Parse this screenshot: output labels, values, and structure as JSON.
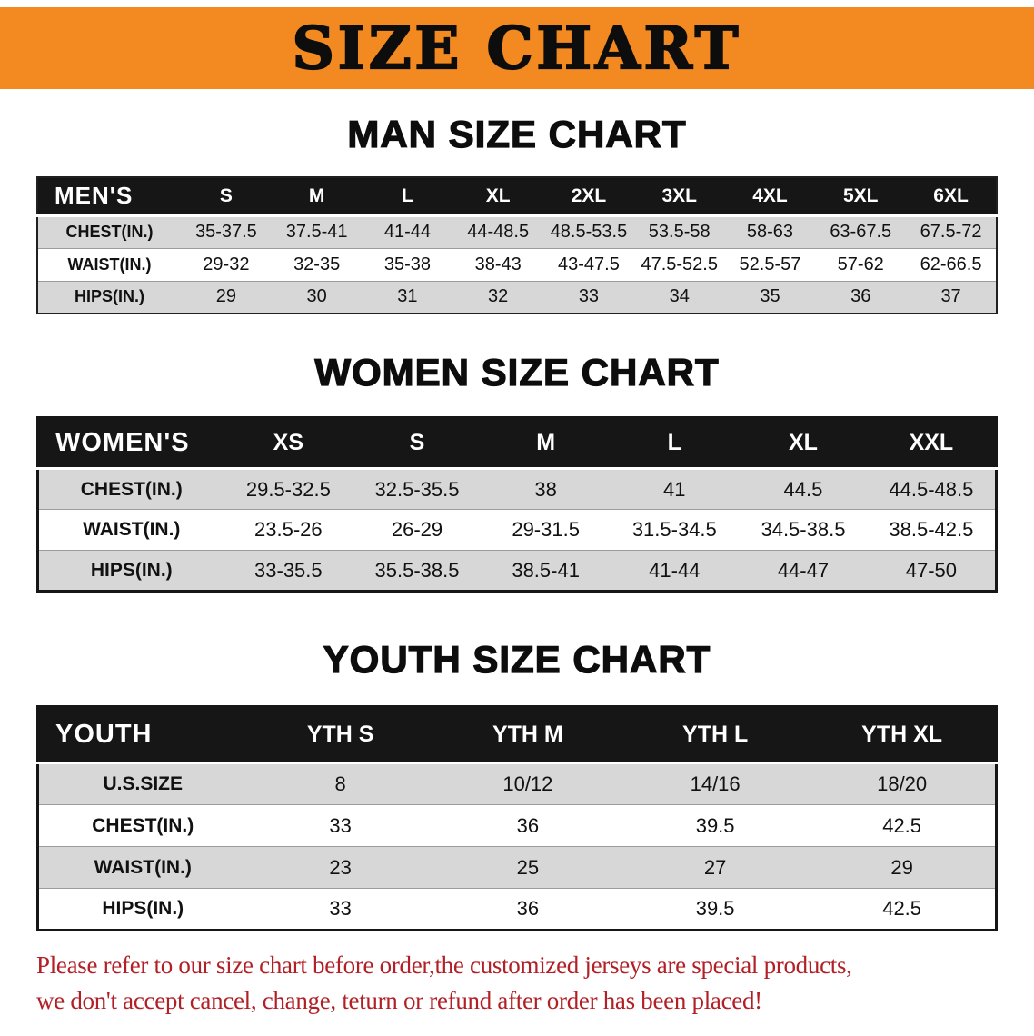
{
  "colors": {
    "banner_bg": "#F28A21",
    "table_header_bg": "#161616",
    "row_alt_bg": "#D7D7D7",
    "disclaimer_text": "#B12026"
  },
  "banner": {
    "title": "SIZE CHART"
  },
  "men": {
    "heading": "MAN SIZE CHART",
    "header": [
      "MEN'S",
      "S",
      "M",
      "L",
      "XL",
      "2XL",
      "3XL",
      "4XL",
      "5XL",
      "6XL"
    ],
    "rows": [
      {
        "label": "CHEST(IN.)",
        "values": [
          "35-37.5",
          "37.5-41",
          "41-44",
          "44-48.5",
          "48.5-53.5",
          "53.5-58",
          "58-63",
          "63-67.5",
          "67.5-72"
        ]
      },
      {
        "label": "WAIST(IN.)",
        "values": [
          "29-32",
          "32-35",
          "35-38",
          "38-43",
          "43-47.5",
          "47.5-52.5",
          "52.5-57",
          "57-62",
          "62-66.5"
        ]
      },
      {
        "label": "HIPS(IN.)",
        "values": [
          "29",
          "30",
          "31",
          "32",
          "33",
          "34",
          "35",
          "36",
          "37"
        ]
      }
    ]
  },
  "women": {
    "heading": "WOMEN SIZE CHART",
    "header": [
      "WOMEN'S",
      "XS",
      "S",
      "M",
      "L",
      "XL",
      "XXL"
    ],
    "rows": [
      {
        "label": "CHEST(IN.)",
        "values": [
          "29.5-32.5",
          "32.5-35.5",
          "38",
          "41",
          "44.5",
          "44.5-48.5"
        ]
      },
      {
        "label": "WAIST(IN.)",
        "values": [
          "23.5-26",
          "26-29",
          "29-31.5",
          "31.5-34.5",
          "34.5-38.5",
          "38.5-42.5"
        ]
      },
      {
        "label": "HIPS(IN.)",
        "values": [
          "33-35.5",
          "35.5-38.5",
          "38.5-41",
          "41-44",
          "44-47",
          "47-50"
        ]
      }
    ]
  },
  "youth": {
    "heading": "YOUTH SIZE CHART",
    "header": [
      "YOUTH",
      "YTH S",
      "YTH M",
      "YTH L",
      "YTH XL"
    ],
    "rows": [
      {
        "label": "U.S.SIZE",
        "values": [
          "8",
          "10/12",
          "14/16",
          "18/20"
        ]
      },
      {
        "label": "CHEST(IN.)",
        "values": [
          "33",
          "36",
          "39.5",
          "42.5"
        ]
      },
      {
        "label": "WAIST(IN.)",
        "values": [
          "23",
          "25",
          "27",
          "29"
        ]
      },
      {
        "label": "HIPS(IN.)",
        "values": [
          "33",
          "36",
          "39.5",
          "42.5"
        ]
      }
    ]
  },
  "footer": {
    "line1": "Please refer to our size chart before order,the customized jerseys are special products,",
    "line2": "we don't accept cancel, change, teturn or refund after order has been placed!"
  }
}
